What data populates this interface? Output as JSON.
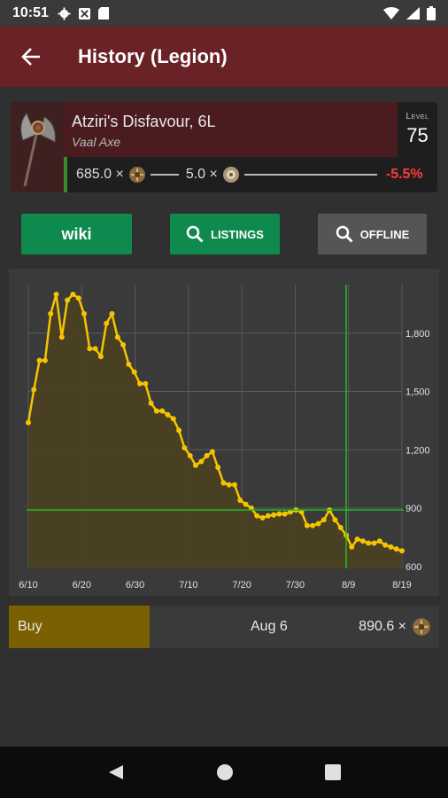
{
  "status": {
    "time": "10:51"
  },
  "appbar": {
    "title": "History (Legion)"
  },
  "item": {
    "name": "Atziri's Disfavour, 6L",
    "base": "Vaal Axe",
    "level_label": "Level",
    "level": "75",
    "chaos_price": "685.0 ×",
    "exalt_price": "5.0 ×",
    "change": "-5.5%",
    "change_color": "#ff3b3b",
    "accent": "#3c8c2c"
  },
  "buttons": {
    "wiki": "wiki",
    "listings": "LISTINGS",
    "offline": "OFFLINE"
  },
  "chart_data": {
    "type": "area",
    "x_start": "6/10",
    "x_ticks": [
      "6/10",
      "6/20",
      "6/30",
      "7/10",
      "7/20",
      "7/30",
      "8/9",
      "8/19"
    ],
    "y_ticks": [
      "600",
      "900",
      "1,200",
      "1,500",
      "1,800"
    ],
    "ylim": [
      590,
      2050
    ],
    "values": [
      1340,
      1510,
      1660,
      1660,
      1900,
      2000,
      1780,
      1970,
      2000,
      1980,
      1900,
      1720,
      1720,
      1680,
      1850,
      1900,
      1780,
      1740,
      1640,
      1600,
      1540,
      1540,
      1440,
      1400,
      1400,
      1380,
      1360,
      1300,
      1210,
      1170,
      1120,
      1140,
      1170,
      1190,
      1110,
      1030,
      1020,
      1020,
      940,
      920,
      900,
      860,
      850,
      860,
      865,
      870,
      870,
      880,
      890,
      880,
      810,
      810,
      820,
      840,
      890,
      840,
      800,
      760,
      700,
      740,
      730,
      720,
      720,
      730,
      710,
      700,
      690,
      680
    ],
    "crosshair": {
      "date": "Aug 6",
      "value": 890.6
    },
    "series_color": "#f5c400",
    "fill_color": "#4a3f22",
    "crosshair_color": "#1fc11f"
  },
  "selection": {
    "side": "Buy",
    "date": "Aug 6",
    "price": "890.6 ×"
  }
}
